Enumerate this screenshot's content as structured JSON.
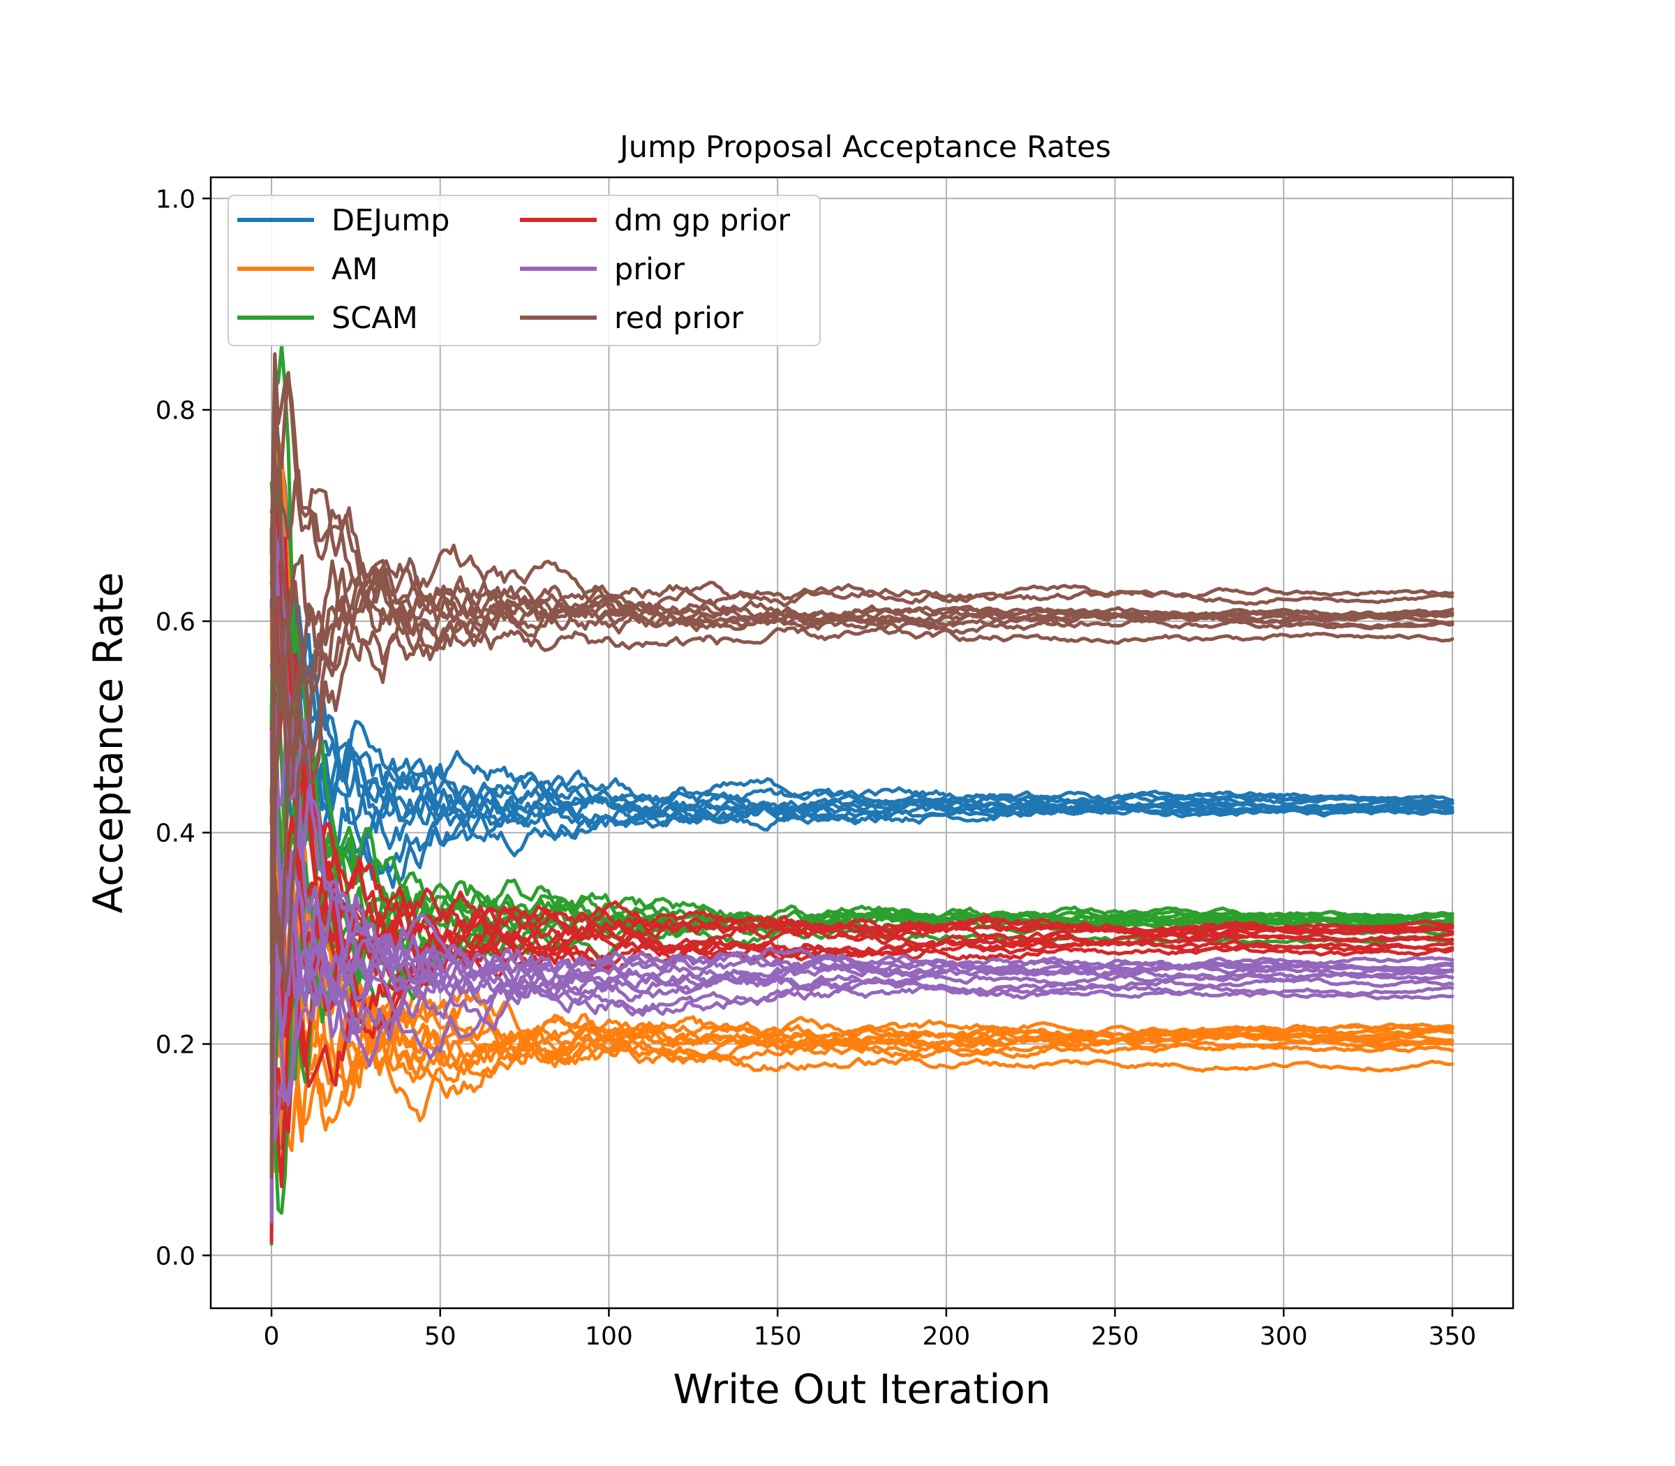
{
  "chart_data": {
    "type": "line",
    "title": "Jump Proposal Acceptance Rates",
    "xlabel": "Write Out Iteration",
    "ylabel": "Acceptance Rate",
    "xlim": [
      -18,
      368
    ],
    "ylim": [
      -0.05,
      1.02
    ],
    "xticks": [
      0,
      50,
      100,
      150,
      200,
      250,
      300,
      350
    ],
    "yticks": [
      0.0,
      0.2,
      0.4,
      0.6,
      0.8,
      1.0
    ],
    "grid": true,
    "legend_placement": "upper-left",
    "legend_columns": 2,
    "groups": [
      {
        "name": "DEJump",
        "color": "#1f77b4",
        "final_values": [
          0.418,
          0.42,
          0.422,
          0.424,
          0.425,
          0.426,
          0.428,
          0.43,
          0.432,
          0.434
        ]
      },
      {
        "name": "AM",
        "color": "#ff7f0e",
        "final_values": [
          0.18,
          0.195,
          0.2,
          0.203,
          0.206,
          0.208,
          0.21,
          0.212,
          0.214,
          0.216
        ]
      },
      {
        "name": "SCAM",
        "color": "#2ca02c",
        "final_values": [
          0.295,
          0.305,
          0.312,
          0.316,
          0.318,
          0.32,
          0.321,
          0.322,
          0.323,
          0.324
        ]
      },
      {
        "name": "dm gp prior",
        "color": "#d62728",
        "final_values": [
          0.288,
          0.292,
          0.296,
          0.3,
          0.302,
          0.305,
          0.307,
          0.309,
          0.311,
          0.313
        ]
      },
      {
        "name": "prior",
        "color": "#9467bd",
        "final_values": [
          0.245,
          0.252,
          0.258,
          0.262,
          0.266,
          0.269,
          0.272,
          0.274,
          0.276,
          0.278
        ]
      },
      {
        "name": "red prior",
        "color": "#8c564b",
        "final_values": [
          0.585,
          0.595,
          0.598,
          0.6,
          0.602,
          0.604,
          0.606,
          0.61,
          0.62,
          0.626
        ]
      }
    ]
  }
}
